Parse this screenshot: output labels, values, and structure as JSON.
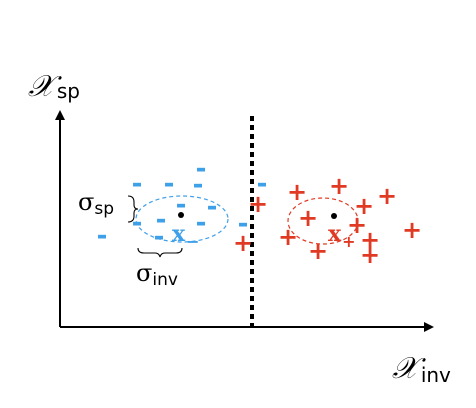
{
  "axes": {
    "y_title_main": "𝒳",
    "y_title_sub": "sp",
    "x_title_main": "𝒳",
    "x_title_sub": "inv"
  },
  "labels": {
    "sigma_sp_main": "σ",
    "sigma_sp_sub": "sp",
    "sigma_inv_main": "σ",
    "sigma_inv_sub": "inv",
    "mean_minus_main": "x",
    "mean_minus_sub": "−",
    "mean_plus_main": "x",
    "mean_plus_sub": "+"
  },
  "markers": {
    "negative_symbol": "-",
    "positive_symbol": "+"
  },
  "colors": {
    "negative": "#3fa0ea",
    "positive": "#e03a24",
    "axis": "#000000",
    "boundary": "#000000"
  }
}
